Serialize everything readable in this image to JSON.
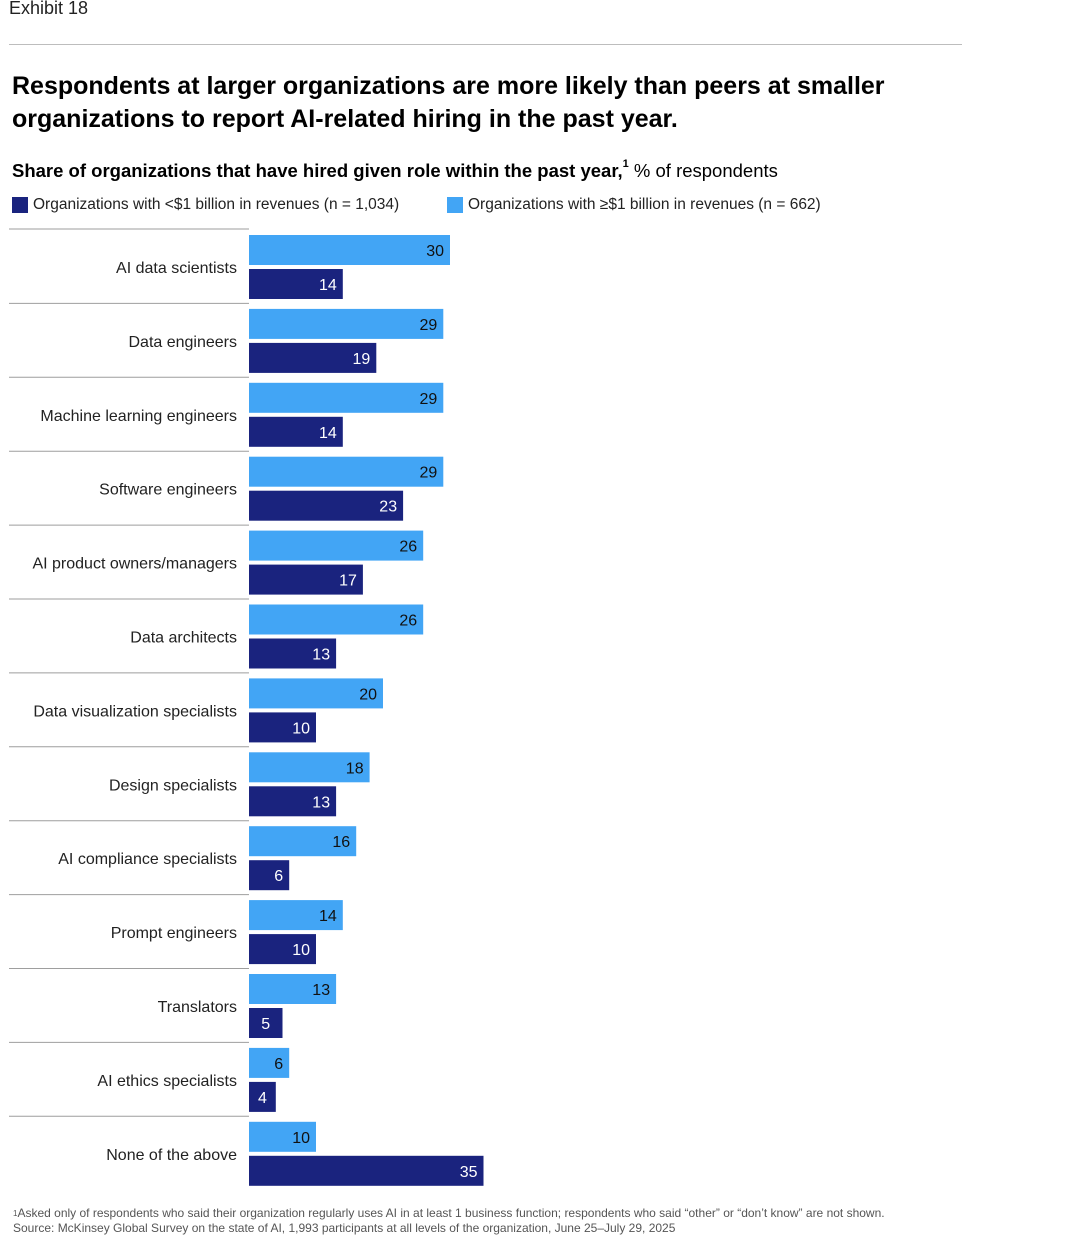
{
  "exhibit_label": "Exhibit 18",
  "headline": "Respondents at larger organizations are more likely than peers at smaller organizations to report AI-related hiring in the past year.",
  "subtitle": {
    "bold": "Share of organizations that have hired given role within the past year,",
    "footnote_marker": "1",
    "unit": " % of respondents"
  },
  "colors": {
    "small_orgs": "#1a237e",
    "large_orgs": "#42a5f5",
    "rule": "#9e9e9e"
  },
  "chart_data": {
    "type": "bar",
    "orientation": "horizontal",
    "title": "Share of organizations that have hired given role within the past year",
    "xlabel": "% of respondents",
    "ylabel": "",
    "xlim": [
      0,
      35
    ],
    "grid": false,
    "legend_position": "top-left",
    "categories": [
      "AI data scientists",
      "Data engineers",
      "Machine learning engineers",
      "Software engineers",
      "AI product owners/managers",
      "Data architects",
      "Data visualization specialists",
      "Design specialists",
      "AI compliance specialists",
      "Prompt engineers",
      "Translators",
      "AI ethics specialists",
      "None of the above"
    ],
    "series": [
      {
        "name": "Organizations with ≥$1 billion in revenues (n = 662)",
        "key": "large",
        "values": [
          30,
          29,
          29,
          29,
          26,
          26,
          20,
          18,
          16,
          14,
          13,
          6,
          10
        ]
      },
      {
        "name": "Organizations with <$1 billion in revenues (n = 1,034)",
        "key": "small",
        "values": [
          14,
          19,
          14,
          23,
          17,
          13,
          10,
          13,
          6,
          10,
          5,
          4,
          35
        ]
      }
    ]
  },
  "legend": {
    "small": "Organizations with <$1 billion in revenues (n = 1,034)",
    "large": "Organizations with ≥$1 billion in revenues (n = 662)"
  },
  "footnote": {
    "marker": "1",
    "text": "Asked only of respondents who said their organization regularly uses AI in at least 1 business function; respondents who said “other” or “don’t know” are not shown.",
    "source": "Source: McKinsey Global Survey on the state of AI, 1,993 participants at all levels of the organization, June 25–July 29, 2025"
  }
}
